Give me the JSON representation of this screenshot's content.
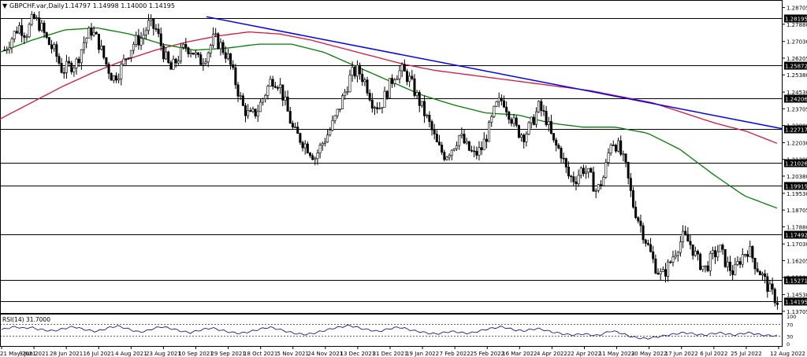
{
  "header": {
    "symbol": "GBPCHF.var,Daily",
    "ohlc": "1.14797 1.14998 1.14000 1.14195"
  },
  "colors": {
    "up_candle": "#ffffff",
    "down_candle": "#000000",
    "candle_outline": "#000000",
    "ma_fast": "#008000",
    "ma_slow": "#dc143c",
    "trendline": "#0000ff",
    "hline": "#000000",
    "rsi_line": "#00008b"
  },
  "rsi": {
    "label": "RSI(14) 31.7000",
    "scale_labels": [
      "100",
      "70",
      "30",
      "0"
    ]
  },
  "chart_data": {
    "type": "candlestick",
    "ylim": [
      1.137,
      1.29
    ],
    "price_ticks": [
      "1.28705",
      "1.27880",
      "1.27030",
      "1.26205",
      "1.25380",
      "1.24530",
      "1.23705",
      "1.22880",
      "1.22030",
      "1.21205",
      "1.20380",
      "1.19530",
      "1.18705",
      "1.17880",
      "1.17030",
      "1.16205",
      "1.15380",
      "1.14530",
      "1.13705"
    ],
    "hlines": [
      {
        "value": 1.28195,
        "label": "1.28195"
      },
      {
        "value": 1.25872,
        "label": "1.25872"
      },
      {
        "value": 1.24206,
        "label": "1.24206"
      },
      {
        "value": 1.22717,
        "label": "1.22717"
      },
      {
        "value": 1.21026,
        "label": "1.21026"
      },
      {
        "value": 1.19915,
        "label": "1.19915"
      },
      {
        "value": 1.17492,
        "label": "1.17492"
      },
      {
        "value": 1.15271,
        "label": "1.15271"
      },
      {
        "value": 1.14195,
        "label": "1.14195"
      }
    ],
    "date_labels": [
      "21 May 2021",
      "9 Jun 2021",
      "28 Jun 2021",
      "16 Jul 2021",
      "4 Aug 2021",
      "23 Aug 2021",
      "10 Sep 2021",
      "29 Sep 2021",
      "18 Oct 2021",
      "5 Nov 2021",
      "24 Nov 2021",
      "13 Dec 2021",
      "31 Dec 2021",
      "19 Jan 2022",
      "7 Feb 2022",
      "25 Feb 2022",
      "16 Mar 2022",
      "4 Apr 2022",
      "22 Apr 2022",
      "11 May 2022",
      "30 May 2022",
      "17 Jun 2022",
      "6 Jul 2022",
      "25 Jul 2022",
      "12 Aug 2022"
    ],
    "close_path": [
      1.266,
      1.272,
      1.278,
      1.274,
      1.282,
      1.278,
      1.27,
      1.265,
      1.256,
      1.258,
      1.26,
      1.27,
      1.276,
      1.27,
      1.26,
      1.252,
      1.256,
      1.264,
      1.27,
      1.272,
      1.279,
      1.276,
      1.265,
      1.256,
      1.262,
      1.268,
      1.266,
      1.26,
      1.264,
      1.272,
      1.268,
      1.262,
      1.25,
      1.238,
      1.233,
      1.236,
      1.244,
      1.252,
      1.25,
      1.238,
      1.226,
      1.222,
      1.218,
      1.213,
      1.22,
      1.226,
      1.234,
      1.244,
      1.254,
      1.256,
      1.25,
      1.24,
      1.238,
      1.246,
      1.254,
      1.256,
      1.252,
      1.244,
      1.236,
      1.228,
      1.218,
      1.214,
      1.218,
      1.224,
      1.218,
      1.214,
      1.217,
      1.226,
      1.238,
      1.242,
      1.234,
      1.226,
      1.224,
      1.23,
      1.238,
      1.232,
      1.22,
      1.216,
      1.204,
      1.202,
      1.208,
      1.204,
      1.196,
      1.204,
      1.222,
      1.218,
      1.208,
      1.19,
      1.18,
      1.17,
      1.16,
      1.154,
      1.16,
      1.168,
      1.174,
      1.17,
      1.162,
      1.158,
      1.164,
      1.168,
      1.16,
      1.156,
      1.164,
      1.168,
      1.16,
      1.154,
      1.147,
      1.142
    ],
    "ma_slow_path": [
      1.232,
      1.24,
      1.248,
      1.255,
      1.261,
      1.266,
      1.27,
      1.273,
      1.275,
      1.274,
      1.271,
      1.267,
      1.263,
      1.259,
      1.256,
      1.254,
      1.252,
      1.25,
      1.248,
      1.246,
      1.243,
      1.24,
      1.235,
      1.23,
      1.226,
      1.22
    ],
    "ma_fast_path": [
      1.265,
      1.271,
      1.276,
      1.277,
      1.274,
      1.269,
      1.266,
      1.267,
      1.269,
      1.269,
      1.265,
      1.258,
      1.251,
      1.244,
      1.239,
      1.235,
      1.234,
      1.23,
      1.228,
      1.228,
      1.225,
      1.217,
      1.205,
      1.194,
      1.188
    ],
    "trendline": {
      "from": 1.2825,
      "to": 1.2272
    },
    "rsi_values": [
      52,
      58,
      62,
      56,
      60,
      54,
      50,
      48,
      52,
      58,
      62,
      55,
      50,
      46,
      52,
      60,
      64,
      58,
      50,
      44,
      48,
      56,
      62,
      58,
      52,
      46,
      42,
      48,
      54,
      58,
      52,
      46,
      42,
      40,
      44,
      50,
      56,
      60,
      55,
      48,
      42,
      38,
      36,
      40,
      46,
      52,
      58,
      62,
      66,
      60,
      54,
      50,
      46,
      52,
      58,
      60,
      54,
      48,
      44,
      40,
      38,
      42,
      46,
      44,
      40,
      42,
      48,
      54,
      58,
      62,
      56,
      50,
      48,
      52,
      56,
      50,
      44,
      40,
      36,
      34,
      38,
      36,
      32,
      38,
      48,
      44,
      36,
      28,
      24,
      22,
      26,
      30,
      34,
      38,
      42,
      40,
      36,
      34,
      38,
      42,
      38,
      34,
      38,
      42,
      38,
      34,
      32,
      32
    ]
  }
}
